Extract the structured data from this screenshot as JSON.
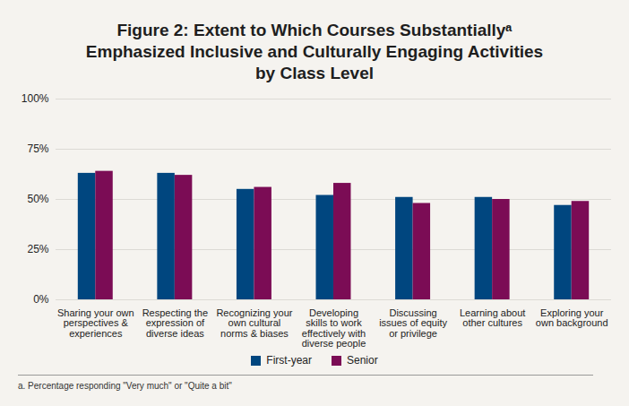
{
  "chart_data": {
    "type": "bar",
    "title": "Figure 2: Extent to Which Courses Substantiallyᵃ Emphasized Inclusive and Culturally Engaging Activities by Class Level",
    "categories": [
      "Sharing your own perspectives & experiences",
      "Respecting the expression of diverse ideas",
      "Recognizing your own cultural norms & biases",
      "Developing skills to work effectively with diverse people",
      "Discussing issues of equity or privilege",
      "Learning about other cultures",
      "Exploring your own background"
    ],
    "series": [
      {
        "name": "First-year",
        "color": "#00467f",
        "values": [
          63,
          63,
          55,
          52,
          51,
          51,
          47
        ]
      },
      {
        "name": "Senior",
        "color": "#7b0c55",
        "values": [
          64,
          62,
          56,
          58,
          48,
          50,
          49
        ]
      }
    ],
    "ylim": [
      0,
      100
    ],
    "yticks": [
      {
        "value": 0,
        "label": "0%"
      },
      {
        "value": 25,
        "label": "25%"
      },
      {
        "value": 50,
        "label": "50%"
      },
      {
        "value": 75,
        "label": "75%"
      },
      {
        "value": 100,
        "label": "100%"
      }
    ],
    "grid": true,
    "legend": "bottom",
    "caption": "a. Percentage responding \"Very much\" or \"Quite a bit\""
  }
}
